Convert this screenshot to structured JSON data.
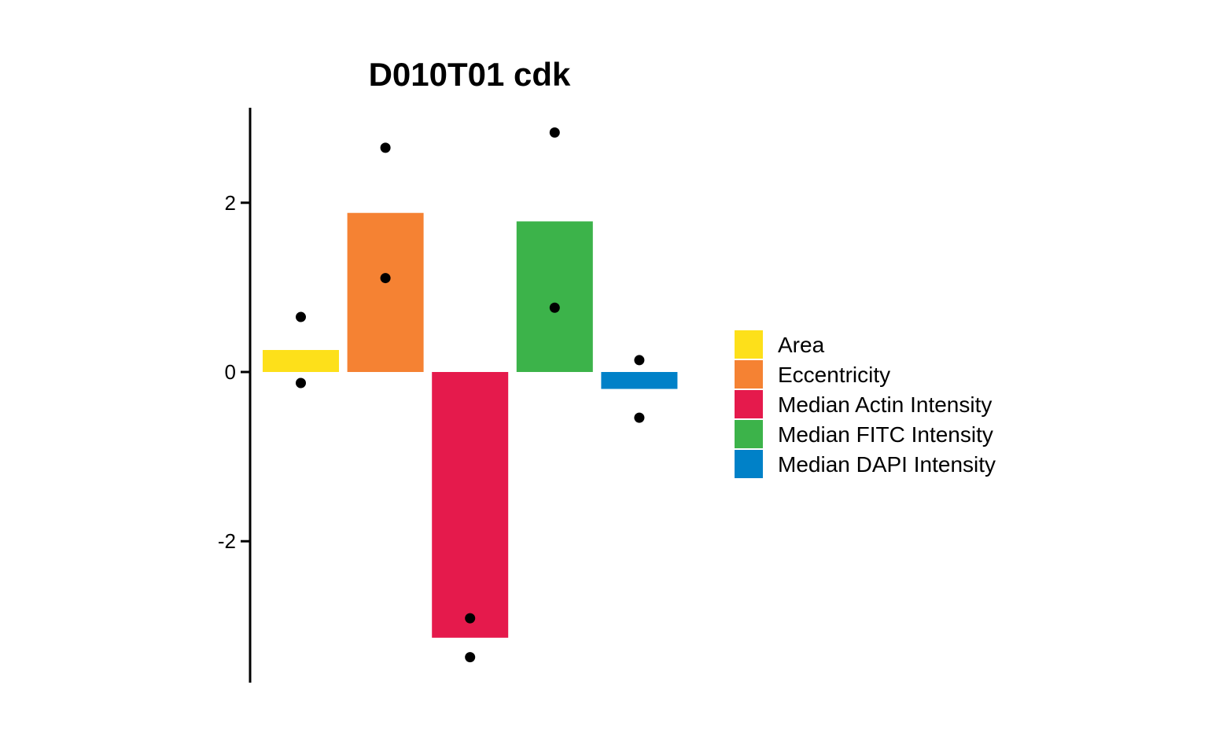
{
  "chart_data": {
    "type": "bar",
    "title": "D010T01 cdk",
    "xlabel": "",
    "ylabel": "",
    "ylim": [
      -3.7,
      3.1
    ],
    "yticks": [
      -2,
      0,
      2
    ],
    "ytick_labels": [
      "-2",
      "0",
      "2"
    ],
    "grid": false,
    "legend_position": "right",
    "categories": [
      "Area",
      "Eccentricity",
      "Median Actin Intensity",
      "Median FITC Intensity",
      "Median DAPI Intensity"
    ],
    "values": [
      0.26,
      1.88,
      -3.14,
      1.78,
      -0.2
    ],
    "colors": [
      "#FDE01A",
      "#F58233",
      "#E51A4C",
      "#3CB34A",
      "#0081C8"
    ],
    "points": [
      [
        0.65,
        -0.13
      ],
      [
        2.65,
        1.11
      ],
      [
        -2.91,
        -3.37
      ],
      [
        2.83,
        0.76
      ],
      [
        0.14,
        -0.54
      ]
    ]
  }
}
